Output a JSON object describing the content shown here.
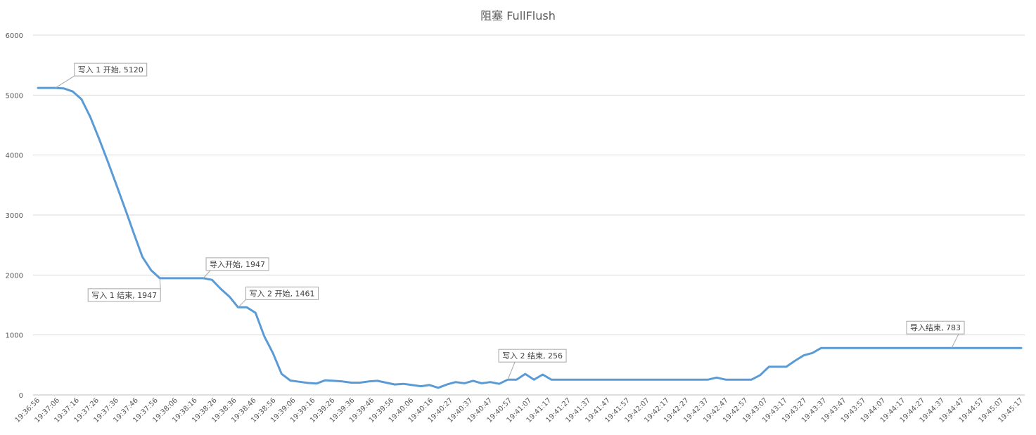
{
  "chart_data": {
    "type": "line",
    "title": "阻塞 FullFlush",
    "xlabel": "",
    "ylabel": "",
    "ylim": [
      0,
      6000
    ],
    "yticks": [
      0,
      1000,
      2000,
      3000,
      4000,
      5000,
      6000
    ],
    "grid": true,
    "legend": "none",
    "color": "#5b9bd5",
    "x_tick_labels": [
      "19:36:56",
      "19:37:06",
      "19:37:16",
      "19:37:26",
      "19:37:36",
      "19:37:46",
      "19:37:56",
      "19:38:06",
      "19:38:16",
      "19:38:26",
      "19:38:36",
      "19:38:46",
      "19:38:56",
      "19:39:06",
      "19:39:16",
      "19:39:26",
      "19:39:36",
      "19:39:46",
      "19:39:56",
      "19:40:06",
      "19:40:16",
      "19:40:27",
      "19:40:37",
      "19:40:47",
      "19:40:57",
      "19:41:07",
      "19:41:17",
      "19:41:27",
      "19:41:37",
      "19:41:47",
      "19:41:57",
      "19:42:07",
      "19:42:17",
      "19:42:27",
      "19:42:37",
      "19:42:47",
      "19:42:57",
      "19:43:07",
      "19:43:17",
      "19:43:27",
      "19:43:37",
      "19:43:47",
      "19:43:57",
      "19:44:07",
      "19:44:17",
      "19:44:27",
      "19:44:37",
      "19:44:47",
      "19:44:57",
      "19:45:07",
      "19:45:17"
    ],
    "values": [
      5120,
      5120,
      5120,
      5110,
      5060,
      4930,
      4640,
      4280,
      3900,
      3510,
      3110,
      2700,
      2300,
      2080,
      1947,
      1947,
      1947,
      1947,
      1947,
      1947,
      1920,
      1770,
      1640,
      1461,
      1461,
      1370,
      980,
      700,
      350,
      240,
      220,
      200,
      190,
      245,
      235,
      225,
      205,
      205,
      225,
      235,
      205,
      175,
      185,
      165,
      145,
      165,
      120,
      175,
      215,
      195,
      235,
      195,
      215,
      185,
      256,
      256,
      350,
      256,
      340,
      256,
      256,
      256,
      256,
      256,
      256,
      256,
      256,
      256,
      256,
      256,
      256,
      256,
      256,
      256,
      256,
      256,
      256,
      256,
      290,
      256,
      256,
      256,
      256,
      330,
      470,
      470,
      470,
      570,
      660,
      700,
      783,
      783,
      783,
      783,
      783,
      783,
      783,
      783,
      783,
      783,
      783,
      783,
      783,
      783,
      783,
      783,
      783,
      783,
      783,
      783,
      783,
      783,
      783,
      783
    ],
    "annotations": [
      {
        "text": "写入 1 开始, 5120",
        "index": 2
      },
      {
        "text": "写入 1 结束, 1947",
        "index": 14
      },
      {
        "text": "导入开始, 1947",
        "index": 19
      },
      {
        "text": "写入 2 开始, 1461",
        "index": 23
      },
      {
        "text": "写入 2 结束, 256",
        "index": 54
      },
      {
        "text": "导入结束, 783",
        "index": 105
      }
    ]
  }
}
